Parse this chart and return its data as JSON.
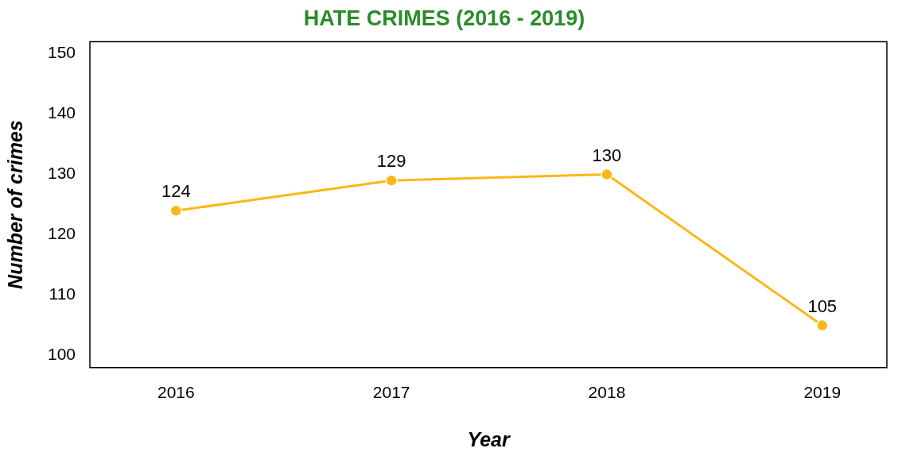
{
  "chart_data": {
    "type": "line",
    "title": "HATE CRIMES (2016 - 2019)",
    "xlabel": "Year",
    "ylabel": "Number of crimes",
    "x": [
      2016,
      2017,
      2018,
      2019
    ],
    "series": [
      {
        "color": "#fbb715",
        "values": [
          124,
          129,
          130,
          105
        ]
      }
    ],
    "xlim": [
      2015.6,
      2019.3
    ],
    "xticks": [
      2016,
      2017,
      2018,
      2019
    ],
    "ylim": [
      98,
      152
    ],
    "yticks": [
      100,
      110,
      120,
      130,
      140,
      150
    ],
    "data_labels": true,
    "marker": "circle",
    "line_style": "solid",
    "grid": false,
    "legend": false
  }
}
